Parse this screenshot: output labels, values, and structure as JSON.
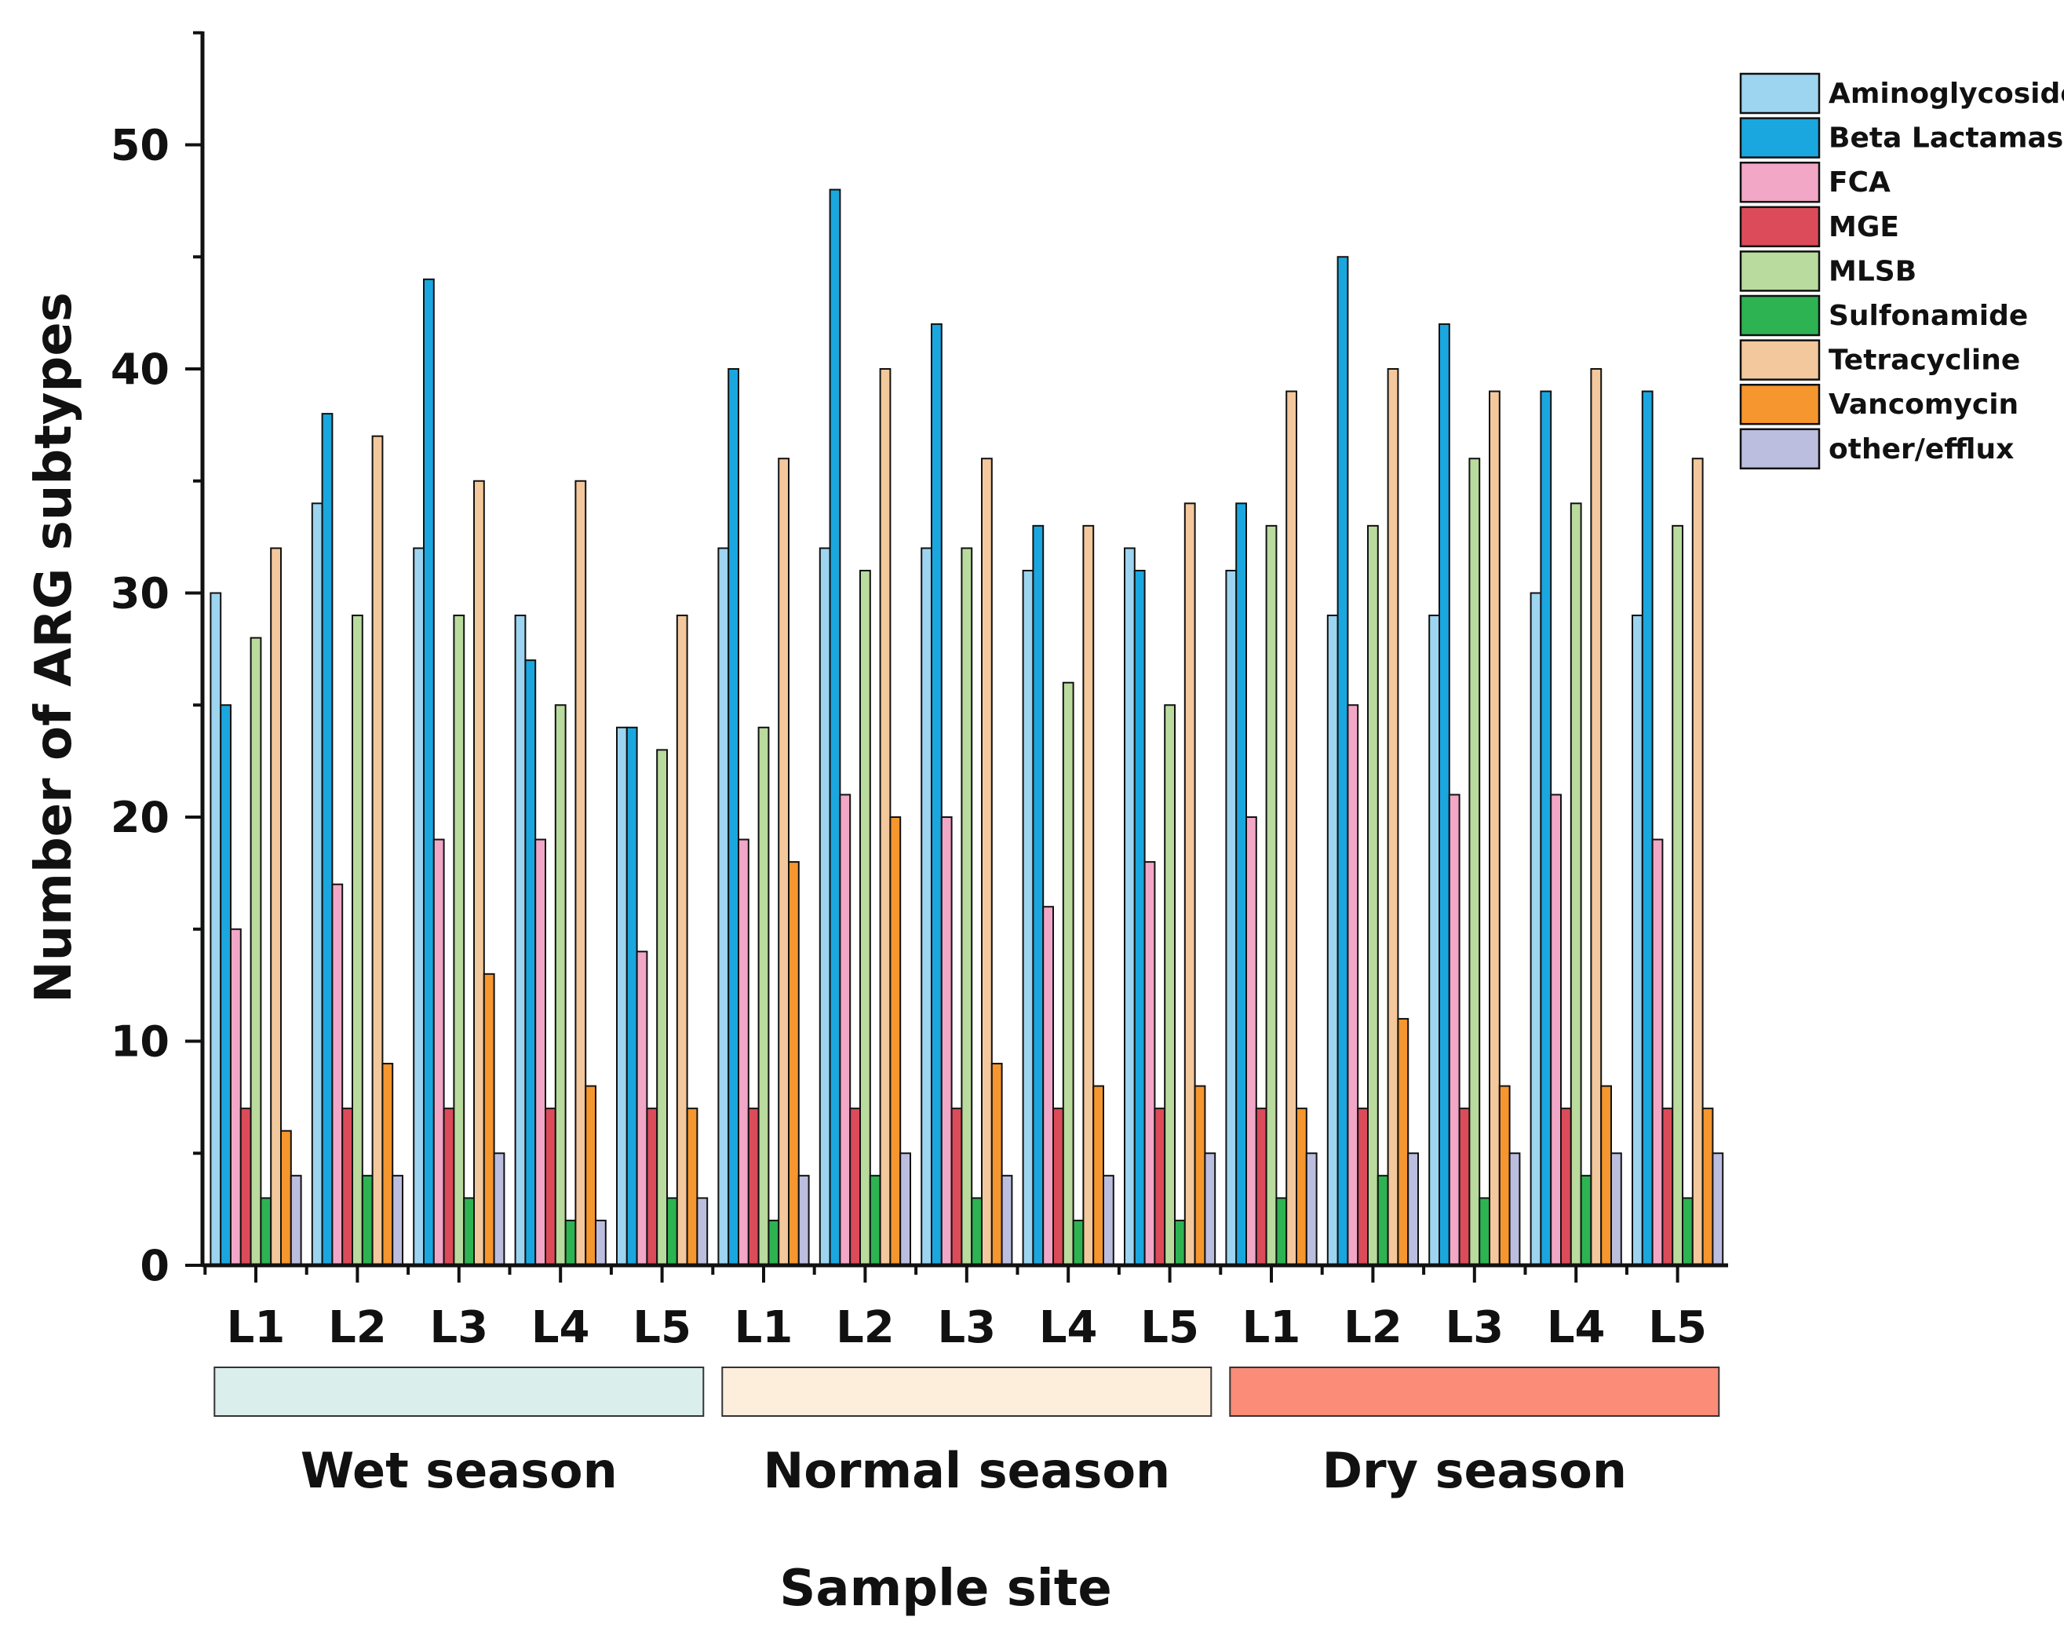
{
  "chart_data": {
    "type": "bar",
    "title": "",
    "xlabel": "Sample site",
    "ylabel": "Number of ARG subtypes",
    "ylim": [
      0,
      55
    ],
    "yticks": [
      0,
      10,
      20,
      30,
      40,
      50
    ],
    "grid": false,
    "legend_position": "top-right",
    "categories": [
      "L1",
      "L2",
      "L3",
      "L4",
      "L5",
      "L1",
      "L2",
      "L3",
      "L4",
      "L5",
      "L1",
      "L2",
      "L3",
      "L4",
      "L5"
    ],
    "groups": [
      {
        "label": "Wet season",
        "color": "#DAEEEC",
        "start": 0,
        "end": 4
      },
      {
        "label": "Normal season",
        "color": "#FDEEDC",
        "start": 5,
        "end": 9
      },
      {
        "label": "Dry season",
        "color": "#FA8C78",
        "start": 10,
        "end": 14
      }
    ],
    "series": [
      {
        "name": "Aminoglycoside",
        "color": "#9DD4F0",
        "values": [
          30,
          34,
          32,
          29,
          24,
          32,
          32,
          32,
          31,
          32,
          31,
          29,
          29,
          30,
          29
        ]
      },
      {
        "name": "Beta Lactamase",
        "color": "#1AA7DF",
        "values": [
          25,
          38,
          44,
          27,
          24,
          40,
          48,
          42,
          33,
          31,
          34,
          45,
          42,
          39,
          39
        ]
      },
      {
        "name": "FCA",
        "color": "#F2A7C7",
        "values": [
          15,
          17,
          19,
          19,
          14,
          19,
          21,
          20,
          16,
          18,
          20,
          25,
          21,
          21,
          19
        ]
      },
      {
        "name": "MGE",
        "color": "#DC4B5A",
        "values": [
          7,
          7,
          7,
          7,
          7,
          7,
          7,
          7,
          7,
          7,
          7,
          7,
          7,
          7,
          7
        ]
      },
      {
        "name": "MLSB",
        "color": "#B9DB9E",
        "values": [
          28,
          29,
          29,
          25,
          23,
          24,
          31,
          32,
          26,
          25,
          33,
          33,
          36,
          34,
          33
        ]
      },
      {
        "name": "Sulfonamide",
        "color": "#2DB352",
        "values": [
          3,
          4,
          3,
          2,
          3,
          2,
          4,
          3,
          2,
          2,
          3,
          4,
          3,
          4,
          3
        ]
      },
      {
        "name": "Tetracycline",
        "color": "#F3C89C",
        "values": [
          32,
          37,
          35,
          35,
          29,
          36,
          40,
          36,
          33,
          34,
          39,
          40,
          39,
          40,
          36
        ]
      },
      {
        "name": "Vancomycin",
        "color": "#F5962E",
        "values": [
          6,
          9,
          13,
          8,
          7,
          18,
          20,
          9,
          8,
          8,
          7,
          11,
          8,
          8,
          7
        ]
      },
      {
        "name": "other/efflux",
        "color": "#BCBEE0",
        "values": [
          4,
          4,
          5,
          2,
          3,
          4,
          5,
          4,
          4,
          5,
          5,
          5,
          5,
          5,
          5
        ]
      }
    ]
  }
}
